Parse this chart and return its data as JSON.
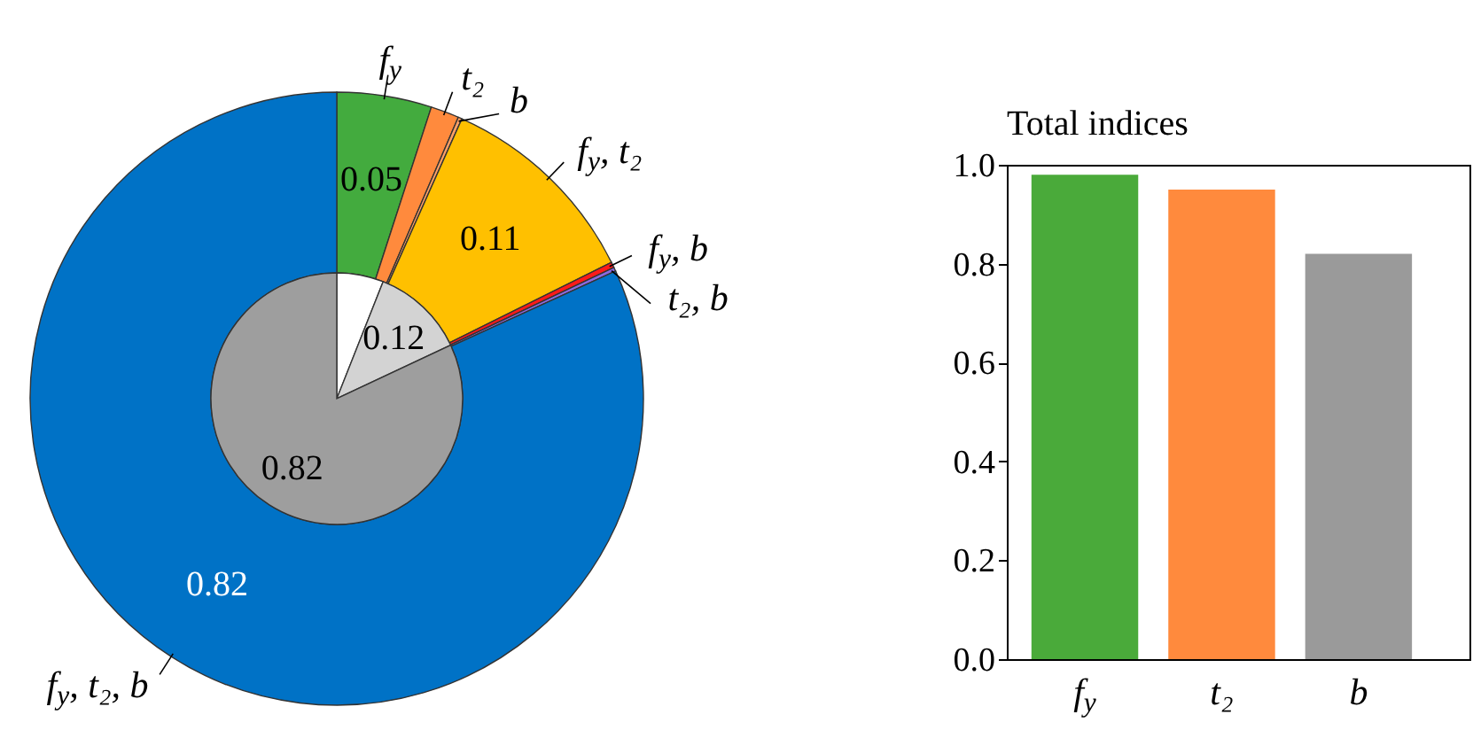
{
  "chart_data": [
    {
      "type": "donut",
      "categories": [
        "f$_{y}$",
        "t₂",
        "b",
        "f$_{y}$, t₂",
        "f$_{y}$, b",
        "t₂, b",
        "f$_{y}$, t₂, b"
      ],
      "values": [
        0.05,
        0.015,
        0.002,
        0.11,
        0.003,
        0.002,
        0.82
      ],
      "colors": [
        "#43ab3e",
        "#ff8a3d",
        "#ffa066",
        "#ffc000",
        "#ff1a1a",
        "#8a6ae0",
        "#0072c6"
      ],
      "value_labels": [
        "0.05",
        null,
        null,
        "0.11",
        null,
        null,
        "0.82"
      ]
    },
    {
      "type": "pie",
      "categories": [
        null,
        null,
        null
      ],
      "values": [
        0.06,
        0.12,
        0.82
      ],
      "colors": [
        "#ffffff",
        "#d3d3d3",
        "#9e9e9e"
      ],
      "value_labels": [
        null,
        "0.12",
        "0.82"
      ]
    },
    {
      "type": "bar",
      "title": "Total indices",
      "categories": [
        "f$_{y}$",
        "t₂",
        "b"
      ],
      "values": [
        0.98,
        0.95,
        0.82
      ],
      "colors": [
        "#4aaa3a",
        "#ff8a3d",
        "#9a9a9a"
      ],
      "ylim": [
        0,
        1.0
      ],
      "yticks": [
        {
          "value": 0,
          "label": "0.0"
        },
        {
          "value": 0.2,
          "label": "0.2"
        },
        {
          "value": 0.4,
          "label": "0.4"
        },
        {
          "value": 0.6,
          "label": "0.6"
        },
        {
          "value": 0.8,
          "label": "0.8"
        },
        {
          "value": 1.0,
          "label": "1.0"
        }
      ],
      "grid": false
    }
  ]
}
